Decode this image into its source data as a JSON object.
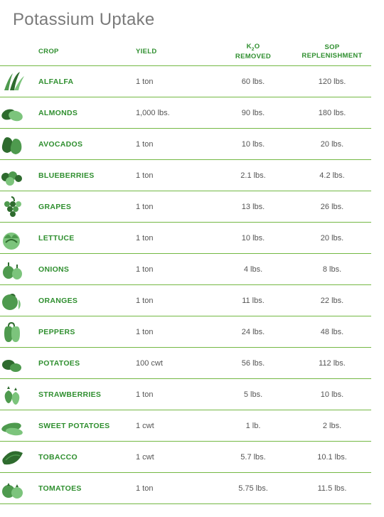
{
  "title": "Potassium Uptake",
  "colors": {
    "header_text": "#2f8f2f",
    "crop_text": "#2f8f2f",
    "value_text": "#555555",
    "title_text": "#7a7a7a",
    "rule": "#74b844",
    "icon_dark": "#2e6b2e",
    "icon_mid": "#4e9a4e",
    "icon_light": "#7cc47c",
    "bg": "#ffffff"
  },
  "headers": {
    "crop": "CROP",
    "yield": "YIELD",
    "k2o_line1": "K",
    "k2o_sub": "2",
    "k2o_line1b": "O",
    "k2o_line2": "REMOVED",
    "sop_line1": "SOP",
    "sop_line2": "REPLENISHMENT"
  },
  "rows": [
    {
      "icon": "alfalfa",
      "crop": "ALFALFA",
      "yield": "1 ton",
      "removed": "60 lbs.",
      "sop": "120 lbs."
    },
    {
      "icon": "almonds",
      "crop": "ALMONDS",
      "yield": "1,000 lbs.",
      "removed": "90 lbs.",
      "sop": "180 lbs."
    },
    {
      "icon": "avocados",
      "crop": "AVOCADOS",
      "yield": "1 ton",
      "removed": "10 lbs.",
      "sop": "20 lbs."
    },
    {
      "icon": "blueberries",
      "crop": "BLUEBERRIES",
      "yield": "1 ton",
      "removed": "2.1 lbs.",
      "sop": "4.2 lbs."
    },
    {
      "icon": "grapes",
      "crop": "GRAPES",
      "yield": "1 ton",
      "removed": "13 lbs.",
      "sop": "26 lbs."
    },
    {
      "icon": "lettuce",
      "crop": "LETTUCE",
      "yield": "1 ton",
      "removed": "10 lbs.",
      "sop": "20 lbs."
    },
    {
      "icon": "onions",
      "crop": "ONIONS",
      "yield": "1 ton",
      "removed": "4 lbs.",
      "sop": "8 lbs."
    },
    {
      "icon": "oranges",
      "crop": "ORANGES",
      "yield": "1 ton",
      "removed": "11 lbs.",
      "sop": "22 lbs."
    },
    {
      "icon": "peppers",
      "crop": "PEPPERS",
      "yield": "1 ton",
      "removed": "24 lbs.",
      "sop": "48 lbs."
    },
    {
      "icon": "potatoes",
      "crop": "POTATOES",
      "yield": "100 cwt",
      "removed": "56 lbs.",
      "sop": "112 lbs."
    },
    {
      "icon": "strawberries",
      "crop": "STRAWBERRIES",
      "yield": "1 ton",
      "removed": "5 lbs.",
      "sop": "10 lbs."
    },
    {
      "icon": "sweetpotatoes",
      "crop": "SWEET POTATOES",
      "yield": "1 cwt",
      "removed": "1 lb.",
      "sop": "2 lbs."
    },
    {
      "icon": "tobacco",
      "crop": "TOBACCO",
      "yield": "1 cwt",
      "removed": "5.7 lbs.",
      "sop": "10.1 lbs."
    },
    {
      "icon": "tomatoes",
      "crop": "TOMATOES",
      "yield": "1 ton",
      "removed": "5.75 lbs.",
      "sop": "11.5 lbs."
    }
  ]
}
